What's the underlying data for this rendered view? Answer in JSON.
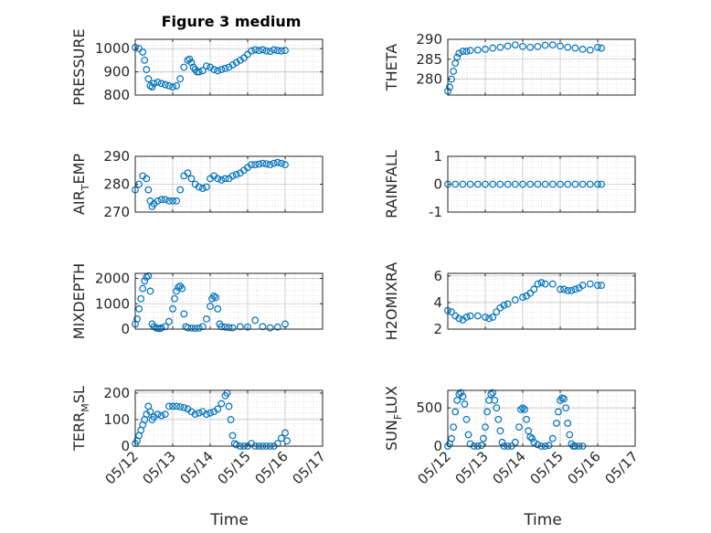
{
  "figure": {
    "title": "Figure 3 medium"
  },
  "chart_data": [
    {
      "type": "scatter",
      "id": "pressure",
      "title": "Figure 3 medium",
      "ylabel": "PRESSURE",
      "ylim": [
        800,
        1040
      ],
      "yticks": [
        "1000",
        "900",
        "800"
      ],
      "ytick_values": [
        1000,
        900,
        800
      ],
      "marker_color": "#0072BD",
      "grid": true,
      "x": [
        12.0,
        12.1,
        12.2,
        12.25,
        12.3,
        12.35,
        12.4,
        12.45,
        12.5,
        12.6,
        12.7,
        12.8,
        12.9,
        13.0,
        13.1,
        13.2,
        13.3,
        13.4,
        13.45,
        13.5,
        13.55,
        13.6,
        13.65,
        13.7,
        13.8,
        13.9,
        14.0,
        14.1,
        14.2,
        14.3,
        14.4,
        14.5,
        14.6,
        14.7,
        14.8,
        14.9,
        15.0,
        15.1,
        15.2,
        15.3,
        15.4,
        15.5,
        15.6,
        15.7,
        15.8,
        15.9,
        16.0
      ],
      "y": [
        1005,
        1000,
        985,
        950,
        910,
        870,
        840,
        835,
        850,
        855,
        850,
        845,
        840,
        835,
        840,
        870,
        920,
        950,
        955,
        940,
        920,
        910,
        900,
        900,
        905,
        925,
        920,
        910,
        905,
        910,
        915,
        920,
        930,
        940,
        950,
        960,
        975,
        990,
        995,
        992,
        995,
        990,
        988,
        995,
        992,
        990,
        992
      ]
    },
    {
      "type": "scatter",
      "id": "theta",
      "ylabel": "THETA",
      "ylim": [
        276,
        290
      ],
      "yticks": [
        "290",
        "285",
        "280"
      ],
      "ytick_values": [
        290,
        285,
        280
      ],
      "marker_color": "#0072BD",
      "grid": true,
      "x": [
        12.0,
        12.05,
        12.1,
        12.15,
        12.2,
        12.25,
        12.3,
        12.4,
        12.5,
        12.6,
        12.8,
        13.0,
        13.2,
        13.4,
        13.6,
        13.8,
        14.0,
        14.2,
        14.4,
        14.6,
        14.8,
        15.0,
        15.2,
        15.4,
        15.6,
        15.8,
        16.0,
        16.1
      ],
      "y": [
        277,
        278,
        280,
        282,
        284,
        285.5,
        286.5,
        287,
        287,
        287.2,
        287.3,
        287.5,
        287.8,
        288.0,
        288.3,
        288.6,
        288.2,
        288.0,
        288.2,
        288.5,
        288.6,
        288.3,
        288.0,
        287.8,
        287.5,
        287.3,
        288.0,
        287.8
      ]
    },
    {
      "type": "scatter",
      "id": "air_temp",
      "ylabel": "AIR_TEMP",
      "ylabel_main": "AIR",
      "ylabel_sub": "T",
      "ylabel_rest": "EMP",
      "ylim": [
        270,
        290
      ],
      "yticks": [
        "290",
        "280",
        "270"
      ],
      "ytick_values": [
        290,
        280,
        270
      ],
      "marker_color": "#0072BD",
      "grid": true,
      "x": [
        12.0,
        12.1,
        12.2,
        12.3,
        12.35,
        12.4,
        12.45,
        12.5,
        12.6,
        12.7,
        12.8,
        12.9,
        13.0,
        13.1,
        13.2,
        13.3,
        13.4,
        13.5,
        13.6,
        13.7,
        13.8,
        13.9,
        14.0,
        14.1,
        14.2,
        14.3,
        14.4,
        14.5,
        14.6,
        14.7,
        14.8,
        14.9,
        15.0,
        15.1,
        15.2,
        15.3,
        15.4,
        15.5,
        15.6,
        15.7,
        15.8,
        15.9,
        16.0
      ],
      "y": [
        278,
        280,
        283,
        282,
        278,
        274,
        272,
        273,
        274,
        274.5,
        274.5,
        274,
        274,
        274,
        278,
        283,
        284,
        282,
        280,
        279,
        278.5,
        279,
        282,
        283,
        282,
        281.5,
        282,
        282,
        283,
        283.5,
        284,
        285,
        286,
        287,
        287,
        287.2,
        287.5,
        287.3,
        287,
        287.5,
        287.8,
        287.5,
        287
      ]
    },
    {
      "type": "scatter",
      "id": "rainfall",
      "ylabel": "RAINFALL",
      "ylim": [
        -1,
        1
      ],
      "yticks": [
        "1",
        "0",
        "-1"
      ],
      "ytick_values": [
        1,
        0,
        -1
      ],
      "marker_color": "#0072BD",
      "grid": true,
      "x": [
        12.0,
        12.2,
        12.4,
        12.6,
        12.8,
        13.0,
        13.2,
        13.4,
        13.6,
        13.8,
        14.0,
        14.2,
        14.4,
        14.6,
        14.8,
        15.0,
        15.2,
        15.4,
        15.6,
        15.8,
        16.0,
        16.1
      ],
      "y": [
        0,
        0,
        0,
        0,
        0,
        0,
        0,
        0,
        0,
        0,
        0,
        0,
        0,
        0,
        0,
        0,
        0,
        0,
        0,
        0,
        0,
        0
      ]
    },
    {
      "type": "scatter",
      "id": "mixdepth",
      "ylabel": "MIXDEPTH",
      "ylim": [
        0,
        2200
      ],
      "yticks": [
        "2000",
        "1000",
        "0"
      ],
      "ytick_values": [
        2000,
        1000,
        0
      ],
      "marker_color": "#0072BD",
      "grid": true,
      "x": [
        12.0,
        12.05,
        12.1,
        12.15,
        12.2,
        12.25,
        12.3,
        12.35,
        12.4,
        12.45,
        12.5,
        12.55,
        12.6,
        12.65,
        12.7,
        12.8,
        12.9,
        13.0,
        13.05,
        13.1,
        13.15,
        13.2,
        13.25,
        13.3,
        13.35,
        13.4,
        13.5,
        13.6,
        13.7,
        13.8,
        13.9,
        14.0,
        14.05,
        14.1,
        14.15,
        14.2,
        14.25,
        14.3,
        14.4,
        14.5,
        14.6,
        14.8,
        15.0,
        15.2,
        15.4,
        15.6,
        15.8,
        16.0
      ],
      "y": [
        200,
        400,
        800,
        1200,
        1600,
        1900,
        2050,
        2100,
        1500,
        200,
        100,
        50,
        30,
        20,
        50,
        100,
        300,
        800,
        1200,
        1500,
        1650,
        1700,
        1600,
        600,
        100,
        50,
        40,
        30,
        40,
        100,
        400,
        900,
        1200,
        1300,
        1250,
        800,
        200,
        100,
        80,
        60,
        50,
        100,
        80,
        350,
        100,
        50,
        80,
        200
      ]
    },
    {
      "type": "scatter",
      "id": "h2omixra",
      "ylabel": "H2OMIXRA",
      "ylim": [
        2,
        6.2
      ],
      "yticks": [
        "6",
        "4",
        "2"
      ],
      "ytick_values": [
        6,
        4,
        2
      ],
      "marker_color": "#0072BD",
      "grid": true,
      "x": [
        12.0,
        12.1,
        12.2,
        12.3,
        12.4,
        12.5,
        12.6,
        12.8,
        13.0,
        13.1,
        13.2,
        13.3,
        13.4,
        13.5,
        13.6,
        13.8,
        14.0,
        14.1,
        14.2,
        14.3,
        14.4,
        14.5,
        14.6,
        14.8,
        15.0,
        15.1,
        15.2,
        15.3,
        15.4,
        15.5,
        15.6,
        15.8,
        16.0,
        16.1
      ],
      "y": [
        3.4,
        3.3,
        3.0,
        2.8,
        2.7,
        2.9,
        3.0,
        3.0,
        2.9,
        2.8,
        2.9,
        3.3,
        3.6,
        3.8,
        3.9,
        4.2,
        4.4,
        4.5,
        4.7,
        5.0,
        5.4,
        5.5,
        5.4,
        5.4,
        5.0,
        5.0,
        4.9,
        4.9,
        5.0,
        5.1,
        5.3,
        5.4,
        5.3,
        5.3
      ]
    },
    {
      "type": "scatter",
      "id": "terr_msl",
      "ylabel": "TERR_MSL",
      "ylabel_main": "TERR",
      "ylabel_sub": "M",
      "ylabel_rest": "SL",
      "ylim": [
        0,
        210
      ],
      "yticks": [
        "200",
        "100",
        "0"
      ],
      "ytick_values": [
        200,
        100,
        0
      ],
      "marker_color": "#0072BD",
      "grid": true,
      "x": [
        12.0,
        12.05,
        12.1,
        12.15,
        12.2,
        12.25,
        12.3,
        12.35,
        12.4,
        12.45,
        12.5,
        12.6,
        12.7,
        12.8,
        12.9,
        13.0,
        13.1,
        13.2,
        13.3,
        13.4,
        13.5,
        13.6,
        13.7,
        13.8,
        13.9,
        14.0,
        14.1,
        14.2,
        14.3,
        14.4,
        14.45,
        14.5,
        14.55,
        14.6,
        14.65,
        14.7,
        14.8,
        14.9,
        15.0,
        15.1,
        15.2,
        15.3,
        15.4,
        15.5,
        15.6,
        15.7,
        15.8,
        15.9,
        16.0,
        16.05
      ],
      "y": [
        10,
        20,
        40,
        60,
        80,
        100,
        120,
        150,
        130,
        100,
        110,
        120,
        115,
        120,
        150,
        150,
        150,
        148,
        145,
        140,
        130,
        120,
        125,
        130,
        120,
        125,
        130,
        140,
        160,
        190,
        200,
        150,
        100,
        40,
        10,
        5,
        0,
        0,
        0,
        10,
        0,
        0,
        0,
        0,
        0,
        0,
        10,
        30,
        50,
        20
      ]
    },
    {
      "type": "scatter",
      "id": "sun_flux",
      "ylabel": "SUN_FLUX",
      "ylabel_main": "SUN",
      "ylabel_sub": "F",
      "ylabel_rest": "LUX",
      "ylim": [
        0,
        730
      ],
      "yticks": [
        "500",
        "0"
      ],
      "ytick_values": [
        500,
        0
      ],
      "marker_color": "#0072BD",
      "grid": true,
      "x": [
        12.0,
        12.05,
        12.1,
        12.15,
        12.2,
        12.25,
        12.3,
        12.35,
        12.4,
        12.45,
        12.5,
        12.55,
        12.6,
        12.7,
        12.8,
        12.9,
        12.95,
        13.0,
        13.05,
        13.1,
        13.15,
        13.2,
        13.25,
        13.3,
        13.35,
        13.4,
        13.45,
        13.5,
        13.6,
        13.7,
        13.8,
        13.9,
        13.95,
        14.0,
        14.05,
        14.1,
        14.15,
        14.2,
        14.25,
        14.3,
        14.4,
        14.5,
        14.6,
        14.7,
        14.8,
        14.9,
        14.95,
        15.0,
        15.05,
        15.1,
        15.15,
        15.2,
        15.25,
        15.3,
        15.35,
        15.4,
        15.5,
        15.6
      ],
      "y": [
        0,
        30,
        100,
        250,
        450,
        600,
        680,
        700,
        650,
        550,
        350,
        150,
        30,
        0,
        0,
        10,
        100,
        250,
        450,
        600,
        680,
        700,
        600,
        500,
        350,
        200,
        50,
        0,
        0,
        0,
        50,
        250,
        480,
        500,
        480,
        350,
        200,
        120,
        100,
        50,
        20,
        0,
        0,
        10,
        100,
        300,
        450,
        600,
        630,
        620,
        500,
        300,
        150,
        30,
        0,
        0,
        0,
        0
      ]
    }
  ],
  "shared_x": {
    "label": "Time",
    "xlim": [
      12,
      17
    ],
    "ticks": [
      "05/12",
      "05/13",
      "05/14",
      "05/15",
      "05/16",
      "05/17"
    ],
    "tick_values": [
      12,
      13,
      14,
      15,
      16,
      17
    ]
  }
}
